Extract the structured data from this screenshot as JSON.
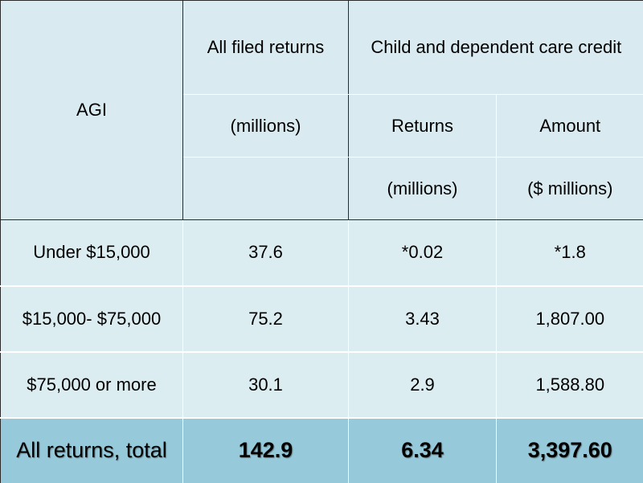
{
  "header": {
    "agi_label": "AGI",
    "all_filed_label": "All filed returns",
    "all_filed_unit": "(millions)",
    "credit_label": "Child and dependent care credit",
    "returns_label": "Returns",
    "amount_label": "Amount",
    "returns_unit": "(millions)",
    "amount_unit": "($ millions)"
  },
  "rows": [
    {
      "agi": "Under $15,000",
      "all_filed": "37.6",
      "returns": "*0.02",
      "amount": "*1.8"
    },
    {
      "agi": "$15,000- $75,000",
      "all_filed": "75.2",
      "returns": "3.43",
      "amount": "1,807.00"
    },
    {
      "agi": "$75,000 or more",
      "all_filed": "30.1",
      "returns": "2.9",
      "amount": "1,588.80"
    }
  ],
  "total": {
    "agi": "All returns, total",
    "all_filed": "142.9",
    "returns": "6.34",
    "amount": "3,397.60"
  }
}
